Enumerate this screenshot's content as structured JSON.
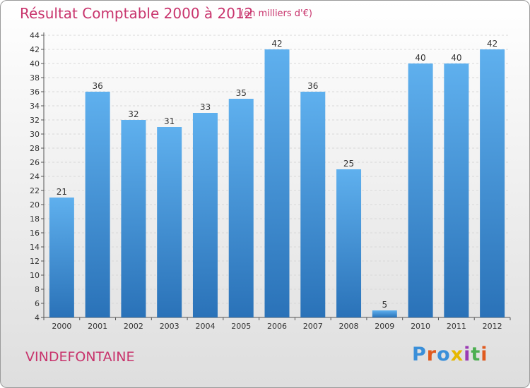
{
  "title": "Résultat Comptable 2000 à 2012",
  "unit_note": "(en milliers d'€)",
  "commune": "VINDEFONTAINE",
  "logo": {
    "text": "Proxiti",
    "colors": [
      "#3a8fd9",
      "#e05a1f",
      "#3a8fd9",
      "#e6b800",
      "#9b3ab4",
      "#4caf50",
      "#e05a1f"
    ]
  },
  "colors": {
    "bar": "#4a9be0",
    "bar_dark": "#2a72b8",
    "title": "#c8336c"
  },
  "chart_data": {
    "type": "bar",
    "title": "Résultat Comptable 2000 à 2012",
    "xlabel": "",
    "ylabel": "",
    "categories": [
      "2000",
      "2001",
      "2002",
      "2003",
      "2004",
      "2005",
      "2006",
      "2007",
      "2008",
      "2009",
      "2010",
      "2011",
      "2012"
    ],
    "values": [
      21,
      36,
      32,
      31,
      33,
      35,
      42,
      36,
      25,
      5,
      40,
      40,
      42
    ],
    "ylim": [
      4,
      44
    ],
    "yticks": [
      4,
      6,
      8,
      10,
      12,
      14,
      16,
      18,
      20,
      22,
      24,
      26,
      28,
      30,
      32,
      34,
      36,
      38,
      40,
      42,
      44
    ],
    "grid": true
  }
}
